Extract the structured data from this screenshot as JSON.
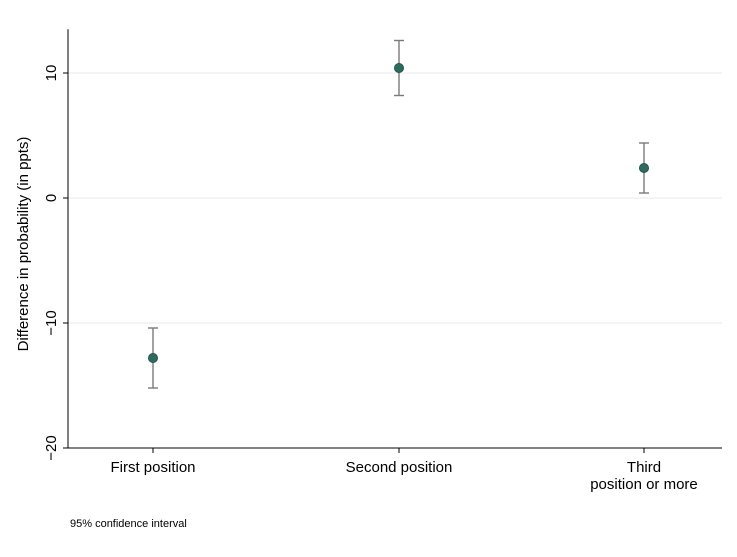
{
  "chart_data": {
    "type": "scatter",
    "categories": [
      "First position",
      "Second position",
      "Third\nposition or more"
    ],
    "estimates": [
      -12.8,
      10.4,
      2.4
    ],
    "ci_lower": [
      -15.2,
      8.2,
      0.4
    ],
    "ci_upper": [
      -10.4,
      12.6,
      4.4
    ],
    "ylabel": "Difference in probability (in ppts)",
    "xlabel": "",
    "ylim": [
      -20,
      13.5
    ],
    "yticks": [
      -20,
      -10,
      0,
      10
    ],
    "grid": true,
    "note": "95% confidence interval",
    "colors": {
      "marker": "#2e6b5e",
      "marker_edge": "#1f4f45",
      "errorbar": "#7a7a7a",
      "grid": "#eaeaea",
      "axis": "#000000"
    }
  }
}
